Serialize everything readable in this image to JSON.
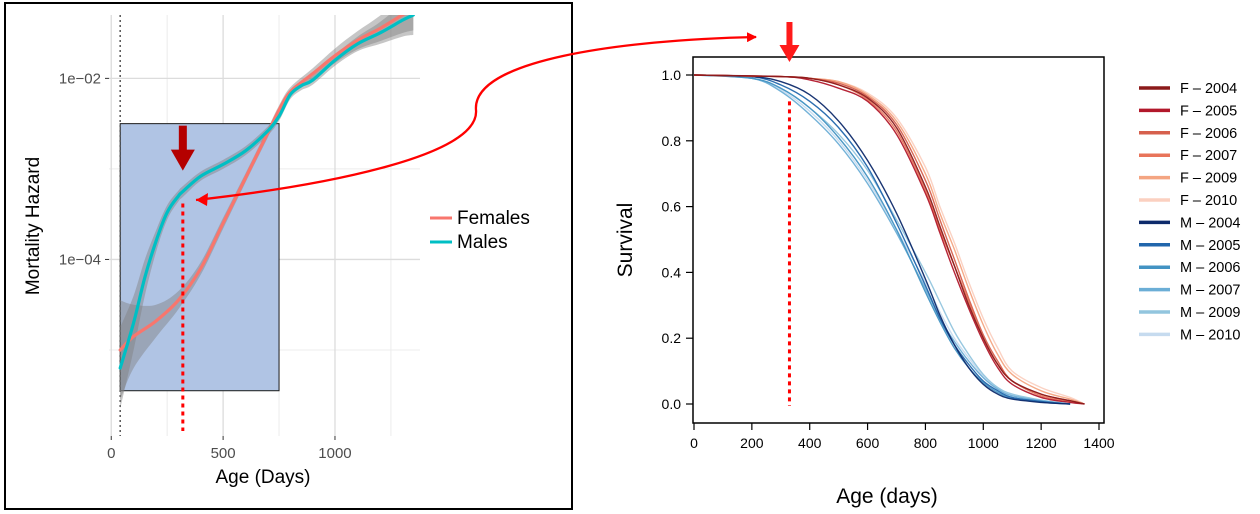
{
  "chart_data": [
    {
      "type": "line",
      "xlabel": "Age (Days)",
      "ylabel": "Mortality Hazard",
      "y_scale": "log",
      "xlim": [
        -10,
        1380
      ],
      "ylim_log10": [
        -5.95,
        -1.3
      ],
      "x_ticks": [
        0,
        500,
        1000
      ],
      "x_tick_labels": [
        "0",
        "500",
        "1000"
      ],
      "y_ticks_log10": [
        -4,
        -2
      ],
      "y_tick_labels": [
        "1e−04",
        "1e−02"
      ],
      "grid": true,
      "legend_position": "right",
      "vline_dotted_grey_x": 40,
      "highlight_box_x": [
        40,
        750
      ],
      "highlight_box_log10": [
        -5.45,
        -2.5
      ],
      "marker_vline_red_dotted_x": 320,
      "marker_arrow_x": 320,
      "series": [
        {
          "name": "Females",
          "color": "#f8766d",
          "x": [
            40,
            100,
            200,
            300,
            400,
            500,
            600,
            700,
            750,
            800,
            900,
            1000,
            1100,
            1200,
            1300,
            1350
          ],
          "log10_y": [
            -5.0,
            -4.85,
            -4.68,
            -4.45,
            -4.1,
            -3.6,
            -3.1,
            -2.6,
            -2.35,
            -2.15,
            -1.95,
            -1.75,
            -1.58,
            -1.45,
            -1.3,
            -1.22
          ],
          "band_halfwidth_log10": [
            0.55,
            0.35,
            0.18,
            0.1,
            0.07,
            0.06,
            0.05,
            0.05,
            0.05,
            0.05,
            0.06,
            0.08,
            0.1,
            0.14,
            0.2,
            0.25
          ]
        },
        {
          "name": "Males",
          "color": "#00bfc4",
          "x": [
            40,
            100,
            150,
            200,
            250,
            300,
            320,
            400,
            500,
            600,
            700,
            750,
            800,
            850,
            900,
            1000,
            1100,
            1200,
            1300,
            1350
          ],
          "log10_y": [
            -5.2,
            -4.7,
            -4.2,
            -3.8,
            -3.48,
            -3.3,
            -3.25,
            -3.08,
            -2.95,
            -2.8,
            -2.58,
            -2.42,
            -2.18,
            -2.08,
            -2.02,
            -1.8,
            -1.62,
            -1.5,
            -1.36,
            -1.3
          ],
          "band_halfwidth_log10": [
            0.45,
            0.3,
            0.2,
            0.12,
            0.08,
            0.06,
            0.06,
            0.05,
            0.05,
            0.05,
            0.05,
            0.05,
            0.05,
            0.05,
            0.05,
            0.06,
            0.08,
            0.12,
            0.18,
            0.22
          ]
        }
      ]
    },
    {
      "type": "line",
      "xlabel": "Age (days)",
      "ylabel": "Survival",
      "xlim": [
        0,
        1400
      ],
      "ylim": [
        0,
        1.0
      ],
      "x_ticks": [
        0,
        200,
        400,
        600,
        800,
        1000,
        1200,
        1400
      ],
      "x_tick_labels": [
        "0",
        "200",
        "400",
        "600",
        "800",
        "1000",
        "1200",
        "1400"
      ],
      "y_ticks": [
        0,
        0.2,
        0.4,
        0.6,
        0.8,
        1.0
      ],
      "y_tick_labels": [
        "0.0",
        "0.2",
        "0.4",
        "0.6",
        "0.8",
        "1.0"
      ],
      "grid": false,
      "legend_position": "right",
      "marker_vline_red_dotted_x": 330,
      "marker_vline_top": 0.92,
      "marker_arrow_x": 330,
      "series": [
        {
          "name": "F – 2004",
          "color": "#8b1a1a",
          "x": [
            0,
            300,
            400,
            500,
            600,
            700,
            800,
            850,
            900,
            950,
            1000,
            1050,
            1100,
            1200,
            1300,
            1350
          ],
          "y": [
            1.0,
            0.995,
            0.99,
            0.97,
            0.93,
            0.84,
            0.66,
            0.54,
            0.42,
            0.3,
            0.2,
            0.12,
            0.07,
            0.03,
            0.01,
            0.0
          ]
        },
        {
          "name": "F – 2005",
          "color": "#b2182b",
          "x": [
            0,
            300,
            400,
            500,
            600,
            700,
            800,
            850,
            900,
            950,
            1000,
            1050,
            1100,
            1200,
            1300,
            1350
          ],
          "y": [
            1.0,
            0.995,
            0.985,
            0.96,
            0.92,
            0.82,
            0.64,
            0.52,
            0.4,
            0.29,
            0.19,
            0.11,
            0.06,
            0.02,
            0.005,
            0.0
          ]
        },
        {
          "name": "F – 2006",
          "color": "#d6604d",
          "x": [
            0,
            300,
            400,
            500,
            600,
            700,
            800,
            850,
            900,
            950,
            1000,
            1050,
            1100,
            1200,
            1300,
            1350
          ],
          "y": [
            1.0,
            0.995,
            0.99,
            0.975,
            0.935,
            0.85,
            0.68,
            0.56,
            0.44,
            0.32,
            0.21,
            0.13,
            0.07,
            0.03,
            0.01,
            0.0
          ]
        },
        {
          "name": "F – 2007",
          "color": "#e8745a",
          "x": [
            0,
            300,
            400,
            500,
            600,
            700,
            800,
            850,
            900,
            950,
            1000,
            1050,
            1100,
            1200,
            1300,
            1350
          ],
          "y": [
            1.0,
            0.995,
            0.99,
            0.97,
            0.925,
            0.83,
            0.65,
            0.53,
            0.42,
            0.31,
            0.2,
            0.12,
            0.07,
            0.025,
            0.008,
            0.0
          ]
        },
        {
          "name": "F – 2009",
          "color": "#f4a582",
          "x": [
            0,
            300,
            400,
            500,
            600,
            700,
            800,
            850,
            900,
            950,
            1000,
            1050,
            1100,
            1200,
            1300,
            1350
          ],
          "y": [
            1.0,
            0.995,
            0.99,
            0.98,
            0.94,
            0.86,
            0.7,
            0.58,
            0.47,
            0.35,
            0.24,
            0.15,
            0.09,
            0.04,
            0.015,
            0.0
          ]
        },
        {
          "name": "F – 2010",
          "color": "#fbd0c0",
          "x": [
            0,
            300,
            400,
            500,
            600,
            700,
            800,
            850,
            900,
            950,
            1000,
            1050,
            1100,
            1200,
            1300,
            1350
          ],
          "y": [
            1.0,
            0.995,
            0.99,
            0.98,
            0.945,
            0.87,
            0.72,
            0.6,
            0.49,
            0.37,
            0.26,
            0.17,
            0.1,
            0.05,
            0.02,
            0.0
          ]
        },
        {
          "name": "M – 2004",
          "color": "#0d2a6b",
          "x": [
            0,
            200,
            300,
            400,
            500,
            600,
            700,
            800,
            850,
            900,
            950,
            1000,
            1050,
            1100,
            1200,
            1300
          ],
          "y": [
            1.0,
            0.995,
            0.98,
            0.94,
            0.86,
            0.74,
            0.58,
            0.38,
            0.27,
            0.18,
            0.11,
            0.06,
            0.03,
            0.015,
            0.005,
            0.0
          ]
        },
        {
          "name": "M – 2005",
          "color": "#2166ac",
          "x": [
            0,
            200,
            300,
            400,
            500,
            600,
            700,
            800,
            850,
            900,
            950,
            1000,
            1050,
            1100,
            1200,
            1300
          ],
          "y": [
            1.0,
            0.995,
            0.97,
            0.92,
            0.84,
            0.72,
            0.55,
            0.36,
            0.26,
            0.18,
            0.12,
            0.07,
            0.04,
            0.02,
            0.008,
            0.0
          ]
        },
        {
          "name": "M – 2006",
          "color": "#4393c3",
          "x": [
            0,
            200,
            300,
            400,
            500,
            600,
            700,
            800,
            850,
            900,
            950,
            1000,
            1050,
            1100,
            1200,
            1300
          ],
          "y": [
            1.0,
            0.99,
            0.96,
            0.9,
            0.81,
            0.69,
            0.53,
            0.34,
            0.25,
            0.17,
            0.11,
            0.065,
            0.035,
            0.018,
            0.006,
            0.0
          ]
        },
        {
          "name": "M – 2007",
          "color": "#6baed6",
          "x": [
            0,
            200,
            300,
            400,
            500,
            600,
            700,
            800,
            850,
            900,
            950,
            1000,
            1050,
            1100,
            1200,
            1300
          ],
          "y": [
            1.0,
            0.99,
            0.95,
            0.88,
            0.79,
            0.67,
            0.52,
            0.35,
            0.26,
            0.19,
            0.13,
            0.08,
            0.045,
            0.025,
            0.01,
            0.0
          ]
        },
        {
          "name": "M – 2009",
          "color": "#92c5de",
          "x": [
            0,
            200,
            300,
            400,
            500,
            600,
            700,
            800,
            850,
            900,
            950,
            1000,
            1050,
            1100,
            1200,
            1300
          ],
          "y": [
            1.0,
            0.99,
            0.96,
            0.9,
            0.82,
            0.71,
            0.56,
            0.4,
            0.31,
            0.22,
            0.15,
            0.09,
            0.05,
            0.03,
            0.012,
            0.0
          ]
        },
        {
          "name": "M – 2010",
          "color": "#c6dbef",
          "x": [
            0,
            200,
            300,
            400,
            500,
            600,
            700,
            800,
            850,
            900,
            950,
            1000,
            1050,
            1100,
            1200,
            1300
          ],
          "y": [
            1.0,
            0.99,
            0.955,
            0.89,
            0.8,
            0.68,
            0.53,
            0.37,
            0.28,
            0.2,
            0.14,
            0.085,
            0.05,
            0.028,
            0.01,
            0.0
          ]
        }
      ]
    }
  ]
}
